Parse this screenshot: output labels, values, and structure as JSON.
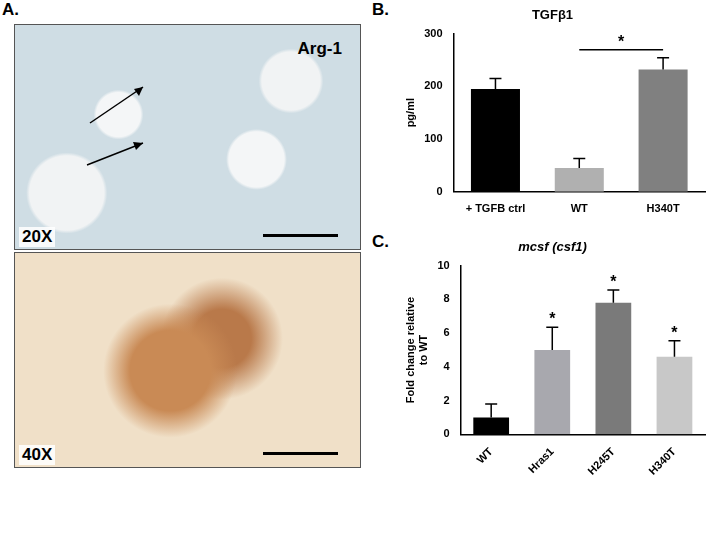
{
  "panel_labels": [
    "A.",
    "B.",
    "C."
  ],
  "images": [
    {
      "stain": "Arg-1",
      "magnification": "20X"
    },
    {
      "magnification": "40X"
    }
  ],
  "chart_data": [
    {
      "type": "bar",
      "title": "TGFβ1",
      "y_label": "pg/ml",
      "categories": [
        "+ TGFB ctrl",
        "WT",
        "H340T"
      ],
      "values": [
        195,
        45,
        232
      ],
      "errors": [
        20,
        18,
        22
      ],
      "colors": [
        "#000000",
        "#b0b0b0",
        "#808080"
      ],
      "ylim": [
        0,
        300
      ],
      "yticks": [
        0,
        100,
        200,
        300
      ],
      "grid": false,
      "annotations": [
        {
          "text": "*",
          "from": "WT",
          "to": "H340T"
        }
      ]
    },
    {
      "type": "bar",
      "title": "mcsf (csf1)",
      "y_label": [
        "Fold change relative",
        "to WT"
      ],
      "categories": [
        "WT",
        "Hras1",
        "H245T",
        "H340T"
      ],
      "values": [
        1.0,
        5.0,
        7.8,
        4.6
      ],
      "errors": [
        0.8,
        1.35,
        0.75,
        0.95
      ],
      "colors": [
        "#000000",
        "#a8a8ae",
        "#7a7a7a",
        "#c8c8c8"
      ],
      "ylim": [
        0,
        10
      ],
      "yticks": [
        0,
        2,
        4,
        6,
        8,
        10
      ],
      "grid": false,
      "annotations": [
        {
          "text": "*",
          "category": "Hras1"
        },
        {
          "text": "*",
          "category": "H245T"
        },
        {
          "text": "*",
          "category": "H340T"
        }
      ]
    }
  ]
}
